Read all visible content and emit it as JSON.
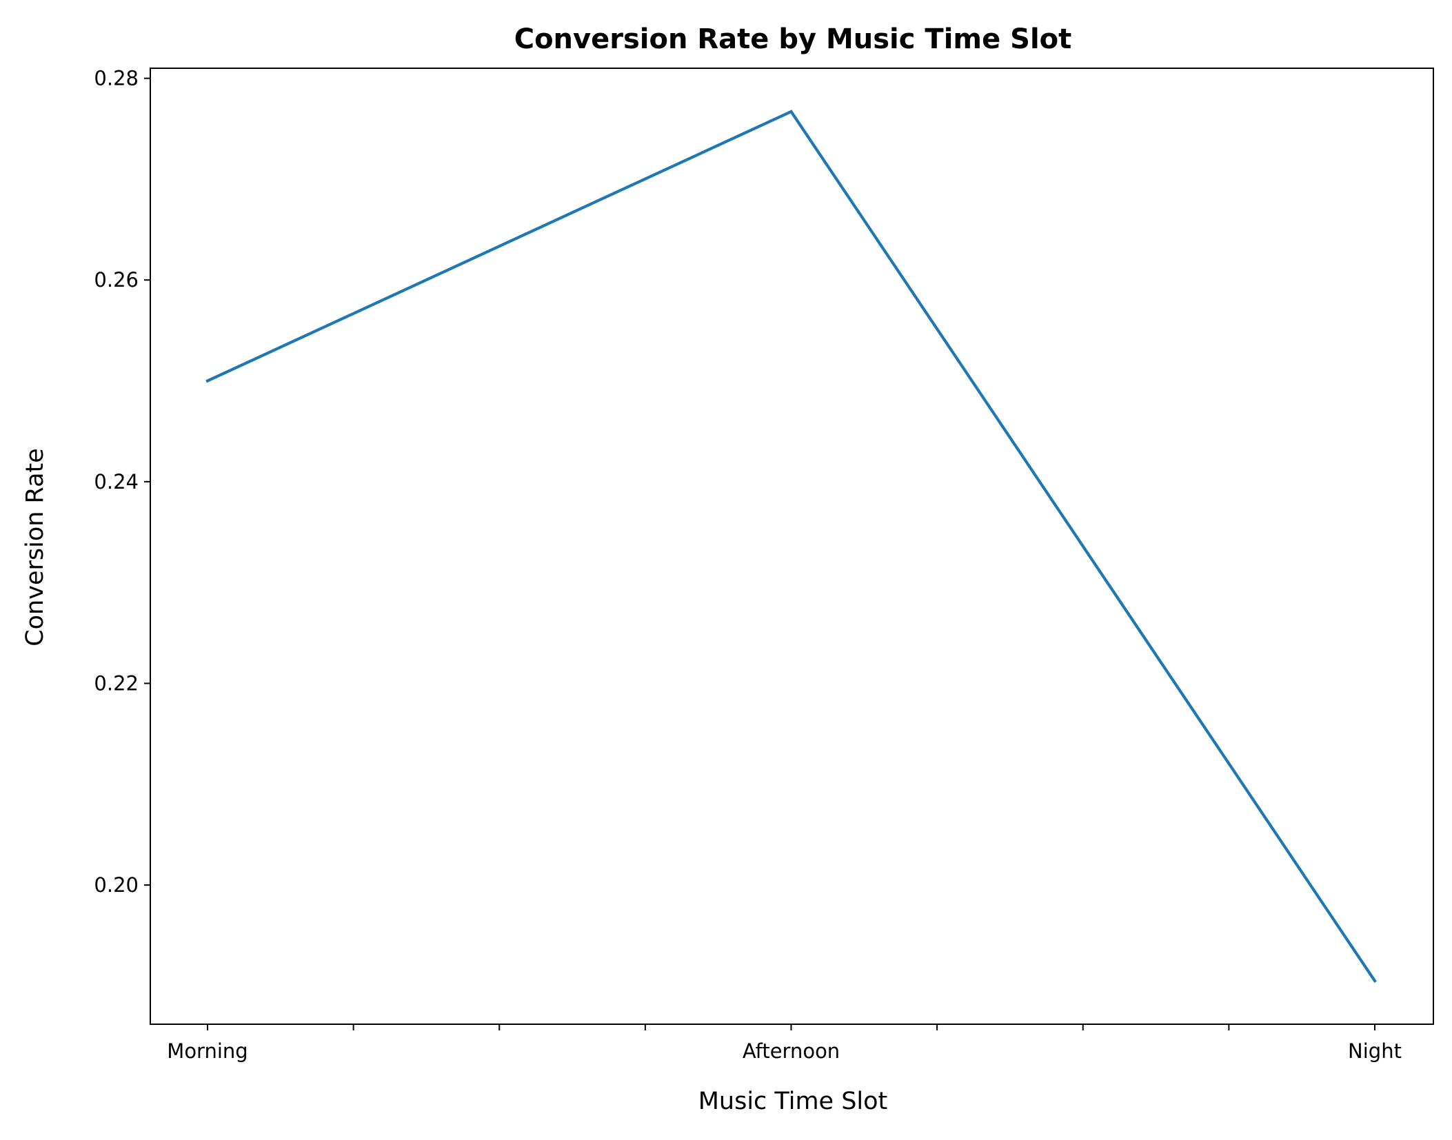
{
  "chart_data": {
    "type": "line",
    "title": "Conversion Rate by Music Time Slot",
    "xlabel": "Music Time Slot",
    "ylabel": "Conversion Rate",
    "categories": [
      "Morning",
      "Afternoon",
      "Night"
    ],
    "series": [
      {
        "values": [
          0.25,
          0.2767,
          0.1905
        ],
        "color": "#1f77b4"
      }
    ],
    "ylim": [
      0.1862,
      0.281
    ],
    "yticks": [
      "0.20",
      "0.22",
      "0.24",
      "0.26",
      "0.28"
    ],
    "minor_xticks_between_categories": 3,
    "grid": false,
    "legend": "none"
  }
}
